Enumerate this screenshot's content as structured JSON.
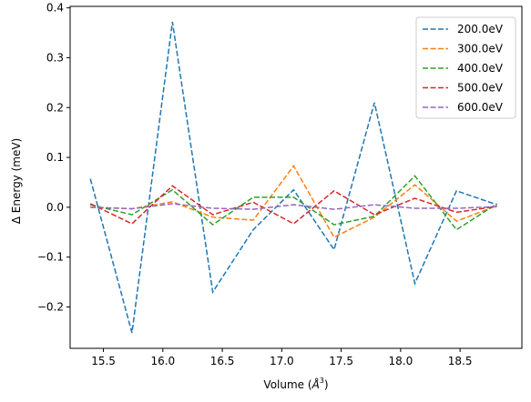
{
  "chart_data": {
    "type": "line",
    "xlabel": "Volume (",
    "xlabel_unit": "Å",
    "xlabel_exp": "3",
    "xlabel_close": ")",
    "ylabel": "Δ Energy (meV)",
    "xlim": [
      15.22,
      19.02
    ],
    "ylim": [
      -0.283,
      0.403
    ],
    "xticks": [
      15.5,
      16.0,
      16.5,
      17.0,
      17.5,
      18.0,
      18.5
    ],
    "xtick_labels": [
      "15.5",
      "16.0",
      "16.5",
      "17.0",
      "17.5",
      "18.0",
      "18.5"
    ],
    "yticks": [
      -0.2,
      -0.1,
      0.0,
      0.1,
      0.2,
      0.3,
      0.4
    ],
    "ytick_labels": [
      "−0.2",
      "−0.1",
      "0.0",
      "0.1",
      "0.2",
      "0.3",
      "0.4"
    ],
    "grid": false,
    "legend_position": "top-right",
    "line_style": "dashed",
    "x": [
      15.39,
      15.74,
      16.08,
      16.42,
      16.76,
      17.1,
      17.44,
      17.78,
      18.12,
      18.47,
      18.81
    ],
    "series": [
      {
        "name": "200.0eV",
        "color": "#1f77b4",
        "values": [
          0.057,
          -0.252,
          0.372,
          -0.17,
          -0.045,
          0.035,
          -0.085,
          0.21,
          -0.153,
          0.033,
          0.005
        ]
      },
      {
        "name": "300.0eV",
        "color": "#ff7f0e",
        "values": [
          0.0,
          -0.003,
          0.011,
          -0.02,
          -0.026,
          0.083,
          -0.06,
          -0.02,
          0.045,
          -0.028,
          0.003
        ]
      },
      {
        "name": "400.0eV",
        "color": "#2ca02c",
        "values": [
          0.005,
          -0.015,
          0.035,
          -0.035,
          0.02,
          0.02,
          -0.035,
          -0.018,
          0.063,
          -0.045,
          0.007
        ]
      },
      {
        "name": "500.0eV",
        "color": "#d62728",
        "values": [
          0.007,
          -0.033,
          0.043,
          -0.015,
          0.01,
          -0.033,
          0.033,
          -0.015,
          0.018,
          -0.01,
          0.002
        ]
      },
      {
        "name": "600.0eV",
        "color": "#9467bd",
        "values": [
          0.0,
          -0.003,
          0.007,
          -0.002,
          -0.004,
          0.005,
          -0.004,
          0.005,
          -0.002,
          -0.002,
          0.001
        ]
      }
    ]
  }
}
